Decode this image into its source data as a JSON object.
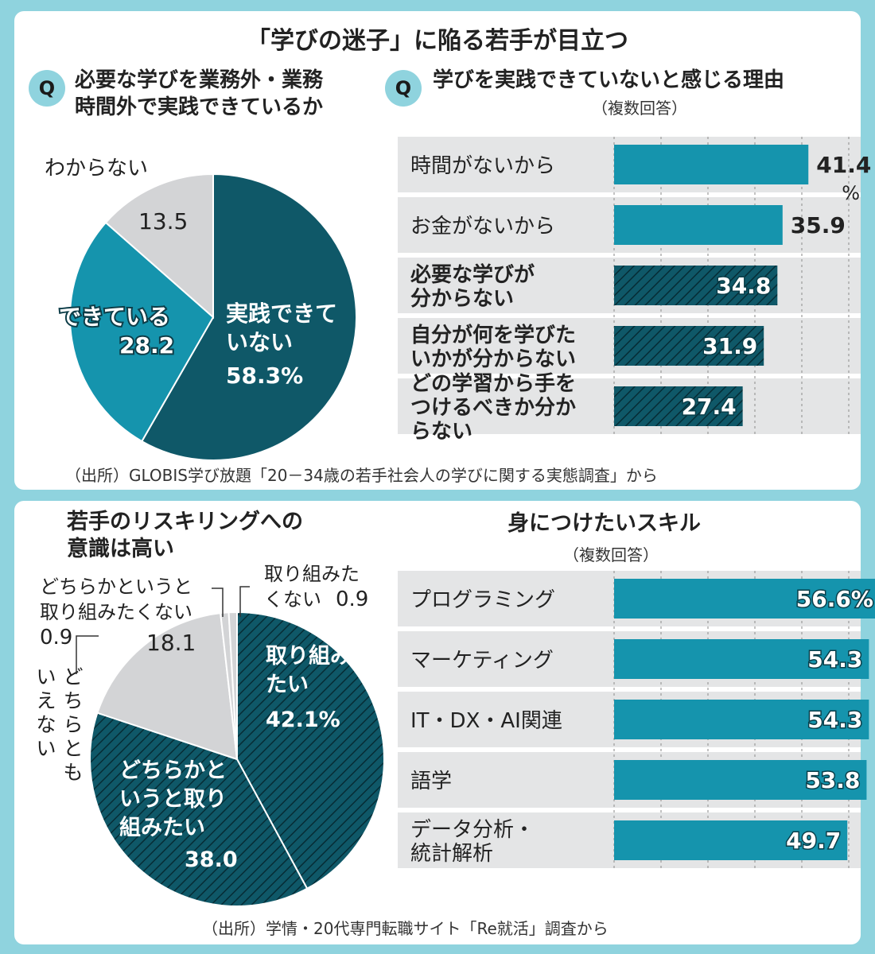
{
  "top": {
    "title": "「学びの迷子」に陥る若手が目立つ",
    "q_badge": "Q",
    "q1": {
      "line1": "必要な学びを業務外・業務",
      "line2": "時間外で実践できているか"
    },
    "q2": {
      "title": "学びを実践できていないと感じる理由",
      "note": "（複数回答）"
    },
    "source": "（出所）GLOBIS学び放題「20－34歳の若手社会人の学びに関する実態調査」から"
  },
  "bottom": {
    "left_title": {
      "line1": "若手のリスキリングへの",
      "line2": "意識は高い"
    },
    "right_title": "身につけたいスキル",
    "right_note": "（複数回答）",
    "source": "（出所）学情・20代専門転職サイト「Re就活」調査から"
  },
  "chart_data": [
    {
      "type": "pie",
      "slices": [
        {
          "label_lines": [
            "実践できて",
            "いない"
          ],
          "value": 58.3,
          "value_label": "58.3%",
          "color": "#0f5868"
        },
        {
          "label_lines": [
            "できている"
          ],
          "value": 28.2,
          "value_label": "28.2",
          "color": "#1594ad"
        },
        {
          "label_lines": [
            "わからない"
          ],
          "value": 13.5,
          "value_label": "13.5",
          "color": "#d3d4d6"
        }
      ]
    },
    {
      "type": "bar",
      "orientation": "horizontal",
      "xlim": [
        0,
        60
      ],
      "grid": true,
      "unit": "%",
      "categories": [
        [
          "時間がないから"
        ],
        [
          "お金がないから"
        ],
        [
          "必要な学びが",
          "分からない"
        ],
        [
          "自分が何を学びた",
          "いかが分からない"
        ],
        [
          "どの学習から手を",
          "つけるべきか分か",
          "らない"
        ]
      ],
      "values": [
        41.4,
        35.9,
        34.8,
        31.9,
        27.4
      ],
      "value_labels": [
        "41.4",
        "35.9",
        "34.8",
        "31.9",
        "27.4"
      ],
      "hatched": [
        false,
        false,
        true,
        true,
        true
      ],
      "bold_category": [
        false,
        false,
        true,
        true,
        true
      ]
    },
    {
      "type": "pie",
      "slices": [
        {
          "label_lines": [
            "取り組み",
            "たい"
          ],
          "value": 42.1,
          "value_label": "42.1%",
          "color": "#0f5868",
          "hatched": true
        },
        {
          "label_lines": [
            "どちらかと",
            "いうと取り",
            "組みたい"
          ],
          "value": 38.0,
          "value_label": "38.0",
          "color": "#0f5868",
          "hatched": true
        },
        {
          "label_lines": [
            "どちらとも",
            "いえない"
          ],
          "value": 18.1,
          "value_label": "18.1",
          "color": "#d3d4d6"
        },
        {
          "label_lines": [
            "どちらかというと",
            "取り組みたくない"
          ],
          "value": 0.9,
          "value_label": "0.9",
          "color": "#d3d4d6"
        },
        {
          "label_lines": [
            "取り組みた",
            "くない"
          ],
          "value": 0.9,
          "value_label": "0.9",
          "color": "#d3d4d6"
        }
      ]
    },
    {
      "type": "bar",
      "orientation": "horizontal",
      "xlim": [
        0,
        60
      ],
      "grid": true,
      "unit": "%",
      "categories": [
        [
          "プログラミング"
        ],
        [
          "マーケティング"
        ],
        [
          "IT・DX・AI関連"
        ],
        [
          "語学"
        ],
        [
          "データ分析・",
          "統計解析"
        ]
      ],
      "values": [
        56.6,
        54.3,
        54.3,
        53.8,
        49.7
      ],
      "value_labels": [
        "56.6%",
        "54.3",
        "54.3",
        "53.8",
        "49.7"
      ],
      "hatched": [
        false,
        false,
        false,
        false,
        false
      ],
      "bold_category": [
        false,
        false,
        false,
        false,
        false
      ]
    }
  ]
}
